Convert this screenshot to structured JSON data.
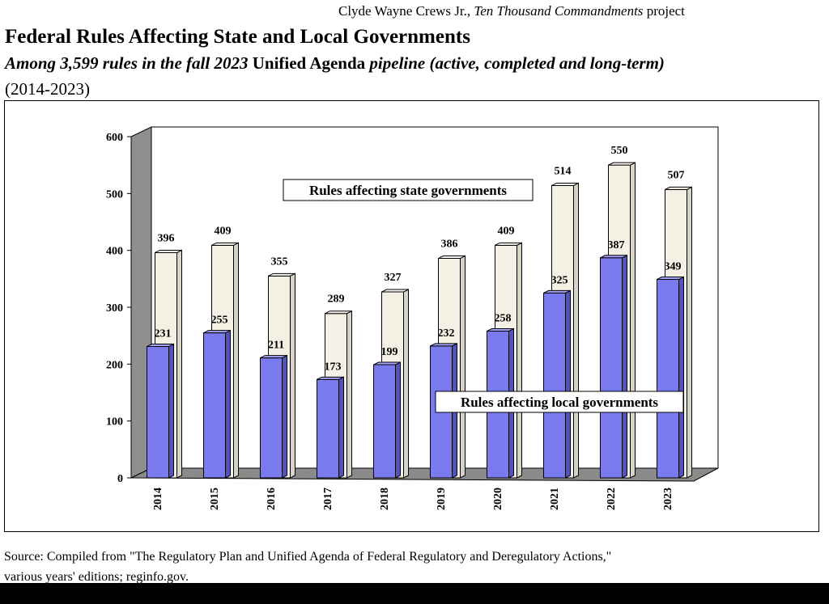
{
  "header": {
    "credit_prefix": "Clyde Wayne Crews Jr.,",
    "credit_italic": "Ten Thousand Commandments",
    "credit_suffix": "project",
    "title": "Federal Rules Affecting State and Local Governments",
    "subtitle_italic_1": "Among 3,599 rules in the fall 2023",
    "subtitle_bold": "Unified Agenda",
    "subtitle_italic_2": "pipeline (active, completed and long-term)",
    "years": "(2014-2023)"
  },
  "source": {
    "line1": "Source: Compiled from \"The Regulatory Plan and Unified Agenda of Federal Regulatory and Deregulatory Actions,\"",
    "line2": "various years' editions; reginfo.gov."
  },
  "colors": {
    "state": "#f4f1e4",
    "local": "#7b7bf0",
    "wall": "#ffffff",
    "floor": "#8a8a8a",
    "side_wall": "#8f8f8f"
  },
  "chart_data": {
    "type": "bar",
    "categories": [
      "2014",
      "2015",
      "2016",
      "2017",
      "2018",
      "2019",
      "2020",
      "2021",
      "2022",
      "2023"
    ],
    "series": [
      {
        "name": "Rules affecting state governments",
        "values": [
          396,
          409,
          355,
          289,
          327,
          386,
          409,
          514,
          550,
          507
        ]
      },
      {
        "name": "Rules affecting local governments",
        "values": [
          231,
          255,
          211,
          173,
          199,
          232,
          258,
          325,
          387,
          349
        ]
      }
    ],
    "yticks": [
      0,
      100,
      200,
      300,
      400,
      500,
      600
    ],
    "ylim": [
      0,
      600
    ],
    "grid": false,
    "legend": "inside"
  }
}
